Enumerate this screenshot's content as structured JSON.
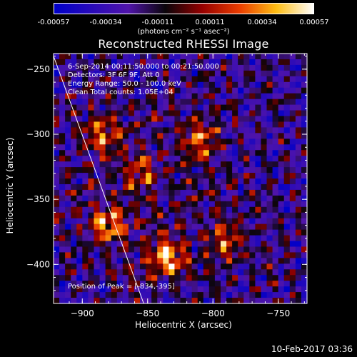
{
  "colorbar": {
    "ticks": [
      "-0.00057",
      "-0.00034",
      "-0.00011",
      "0.00011",
      "0.00034",
      "0.00057"
    ],
    "units": "(photons cm⁻² s⁻¹ asec⁻²)"
  },
  "info": {
    "time_range": "6-Sep-2014 00:11:50.000 to 00:21:50.000",
    "detectors": "Detectors: 3F 6F 9F, Att 0",
    "energy": "Energy Range: 50.0 - 100.0 keV",
    "clean": "Clean     Total counts: 1.05E+04",
    "peak": "Position of Peak = [-834,-395]"
  },
  "timestamp": "10-Feb-2017 03:36",
  "chart_data": {
    "type": "heatmap",
    "title": "Reconstructed RHESSI Image",
    "xlabel": "Heliocentric X (arcsec)",
    "ylabel": "Heliocentric Y (arcsec)",
    "xlim": [
      -922,
      -728
    ],
    "ylim": [
      -430,
      -238
    ],
    "xticks": [
      -900,
      -850,
      -800,
      -750
    ],
    "yticks": [
      -250,
      -300,
      -350,
      -400
    ],
    "colorbar_range": [
      -0.00057,
      0.00057
    ],
    "limb_line": [
      [
        -922,
        -240
      ],
      [
        -853,
        -430
      ]
    ],
    "peak": {
      "x": -834,
      "y": -395
    },
    "hot_regions": [
      {
        "x": -880,
        "y": -370,
        "level": 0.9
      },
      {
        "x": -835,
        "y": -395,
        "level": 1.0
      },
      {
        "x": -810,
        "y": -305,
        "level": 0.8
      },
      {
        "x": -885,
        "y": -300,
        "level": 0.7
      },
      {
        "x": -790,
        "y": -380,
        "level": 0.7
      },
      {
        "x": -855,
        "y": -330,
        "level": 0.6
      }
    ]
  }
}
